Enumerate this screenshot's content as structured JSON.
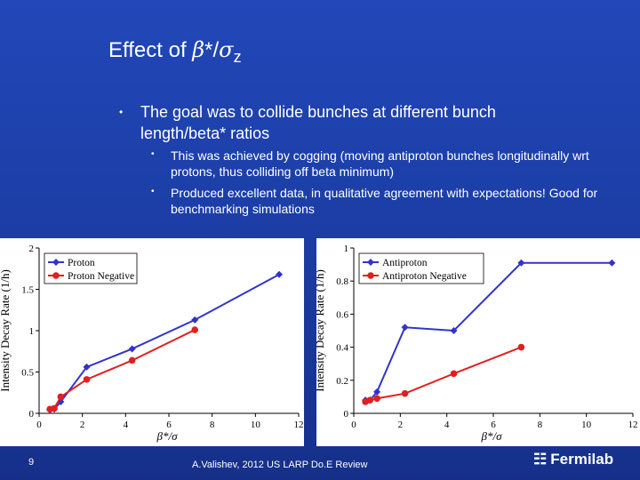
{
  "slide": {
    "title_prefix": "Effect of ",
    "title_beta": "β",
    "title_mid": "*/",
    "title_sigma": "σ",
    "title_sub": "z",
    "bullet_main": "The goal was to collide bunches at different bunch length/beta* ratios",
    "sub_bullets": [
      "This was achieved by cogging (moving antiproton bunches longitudinally wrt protons, thus colliding off beta minimum)",
      "Produced excellent data, in qualitative agreement with expectations! Good for benchmarking simulations"
    ],
    "page_number": "9",
    "credit": "A.Valishev, 2012 US LARP Do.E Review",
    "logo_text": "Fermilab",
    "logo_icon": "fermilab-logo-icon",
    "bullet_icon": "bullet-dot-icon"
  },
  "colors": {
    "background": "#1c3fa8",
    "series_blue": "#3333cc",
    "series_red": "#e02020"
  },
  "chart_data": [
    {
      "type": "line",
      "xlabel": "β*/σ",
      "ylabel": "Intensity Decay Rate (1/h)",
      "xlim": [
        0,
        12
      ],
      "ylim": [
        0,
        2
      ],
      "xticks": [
        "0",
        "2",
        "4",
        "6",
        "8",
        "10",
        "12"
      ],
      "yticks": [
        "0",
        "0.5",
        "1",
        "1.5",
        "2"
      ],
      "xtick_values": [
        0,
        2,
        4,
        6,
        8,
        10,
        12
      ],
      "ytick_values": [
        0,
        0.5,
        1,
        1.5,
        2
      ],
      "legend_position": "top-left",
      "series": [
        {
          "name": "Proton",
          "color": "#3333cc",
          "marker": "diamond",
          "x": [
            0.5,
            0.7,
            1.0,
            2.2,
            4.3,
            7.2,
            11.1
          ],
          "y": [
            0.04,
            0.05,
            0.14,
            0.56,
            0.78,
            1.13,
            1.68
          ]
        },
        {
          "name": "Proton Negative",
          "color": "#e02020",
          "marker": "circle",
          "x": [
            0.5,
            0.7,
            1.0,
            2.2,
            4.3,
            7.2
          ],
          "y": [
            0.05,
            0.06,
            0.2,
            0.41,
            0.64,
            1.01
          ]
        }
      ]
    },
    {
      "type": "line",
      "xlabel": "β*/σ",
      "ylabel": "Intensity Decay Rate (1/h)",
      "xlim": [
        0,
        12
      ],
      "ylim": [
        0,
        1
      ],
      "xticks": [
        "0",
        "2",
        "4",
        "6",
        "8",
        "10",
        "12"
      ],
      "yticks": [
        "0",
        "0.2",
        "0.4",
        "0.6",
        "0.8",
        "1"
      ],
      "xtick_values": [
        0,
        2,
        4,
        6,
        8,
        10,
        12
      ],
      "ytick_values": [
        0,
        0.2,
        0.4,
        0.6,
        0.8,
        1
      ],
      "legend_position": "top-left",
      "series": [
        {
          "name": "Antiproton",
          "color": "#3333cc",
          "marker": "diamond",
          "x": [
            0.5,
            0.7,
            1.0,
            2.2,
            4.3,
            7.2,
            11.1
          ],
          "y": [
            0.08,
            0.08,
            0.13,
            0.52,
            0.5,
            0.91,
            0.91
          ]
        },
        {
          "name": "Antiproton Negative",
          "color": "#e02020",
          "marker": "circle",
          "x": [
            0.5,
            0.7,
            1.0,
            2.2,
            4.3,
            7.2
          ],
          "y": [
            0.07,
            0.08,
            0.09,
            0.12,
            0.24,
            0.4
          ]
        }
      ]
    }
  ]
}
